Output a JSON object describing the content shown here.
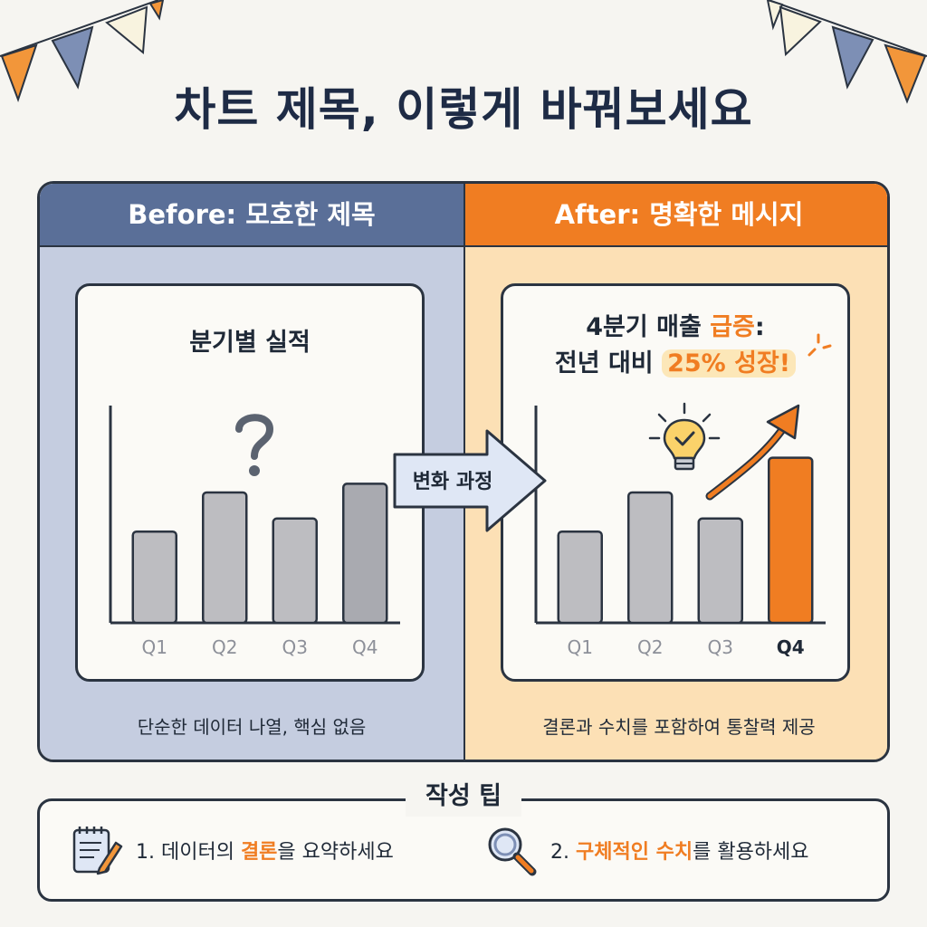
{
  "title": "차트 제목, 이렇게 바꿔보세요",
  "before": {
    "header": "Before: 모호한 제목",
    "chart_title": "분기별 실적",
    "caption": "단순한 데이터 나열, 핵심 없음",
    "icon": "question-mark-icon"
  },
  "after": {
    "header": "After: 명확한 메시지",
    "headline_line1_a": "4분기 매출 ",
    "headline_line1_b": "급증",
    "headline_line1_c": ":",
    "headline_line2_a": "전년 대비 ",
    "headline_line2_b": "25% 성장!",
    "caption": "결론과 수치를 포함하여 통찰력 제공",
    "icons": [
      "lightbulb-check-icon",
      "trend-arrow-icon"
    ]
  },
  "transition_label": "변화 과정",
  "tips": {
    "title": "작성 팁",
    "items": [
      {
        "prefix": "1. 데이터의 ",
        "highlight": "결론",
        "suffix": "을 요약하세요",
        "icon": "notepad-pencil-icon"
      },
      {
        "prefix": "2. ",
        "highlight": "구체적인 수치",
        "suffix": "를 활용하세요",
        "icon": "magnifier-icon"
      }
    ]
  },
  "colors": {
    "navy": "#1e2b45",
    "before_header": "#5a6f98",
    "before_bg": "#c5cde0",
    "after_header": "#f07d22",
    "after_bg": "#fce0b5",
    "bar_gray": "#bdbdc1",
    "highlight_orange": "#f07d22"
  },
  "chart_data": [
    {
      "type": "bar",
      "categories": [
        "Q1",
        "Q2",
        "Q3",
        "Q4"
      ],
      "values": [
        4.2,
        6.0,
        4.8,
        6.4
      ],
      "highlight_index": -1,
      "ylim": [
        0,
        10
      ]
    },
    {
      "type": "bar",
      "categories": [
        "Q1",
        "Q2",
        "Q3",
        "Q4"
      ],
      "values": [
        4.2,
        6.0,
        4.8,
        7.6
      ],
      "highlight_index": 3,
      "ylim": [
        0,
        10
      ]
    }
  ]
}
